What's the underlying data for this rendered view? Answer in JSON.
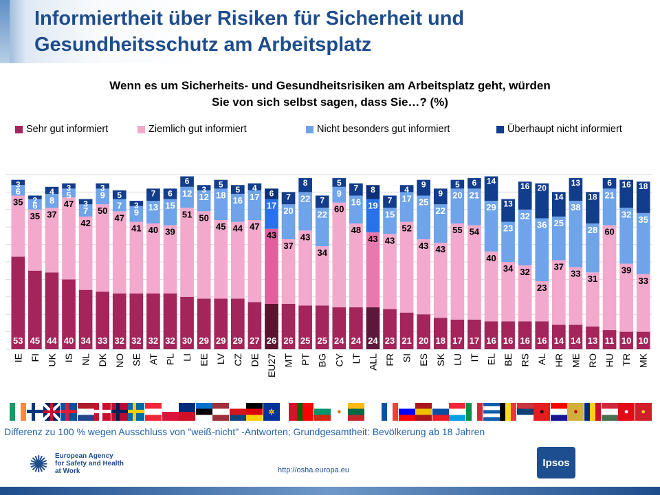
{
  "header": {
    "title_line1": "Informiertheit über Risiken für Sicherheit und",
    "title_line2": "Gesundheitsschutz am Arbeitsplatz"
  },
  "question": {
    "line1": "Wenn es um Sicherheits- und Gesundheitsrisiken am Arbeitsplatz geht, würden",
    "line2": "Sie von sich selbst sagen, dass Sie…? (%)"
  },
  "legend": [
    {
      "label": "Sehr gut informiert",
      "color": "#a3255a"
    },
    {
      "label": "Ziemlich gut informiert",
      "color": "#f2a9cc"
    },
    {
      "label": "Nicht besonders gut informiert",
      "color": "#6fa3ea"
    },
    {
      "label": "Überhaupt nicht informiert",
      "color": "#123c8c"
    }
  ],
  "chart_data": {
    "type": "bar",
    "stacked": true,
    "unit": "%",
    "ylim": [
      0,
      100
    ],
    "categories": [
      "IE",
      "FI",
      "UK",
      "IS",
      "NL",
      "DK",
      "NO",
      "SE",
      "AT",
      "PL",
      "LI",
      "EE",
      "LV",
      "CZ",
      "DE",
      "EU27",
      "MT",
      "PT",
      "BG",
      "CY",
      "LT",
      "ALL",
      "FR",
      "SI",
      "ES",
      "SK",
      "LU",
      "IT",
      "EL",
      "BE",
      "RS",
      "AL",
      "HR",
      "ME",
      "RO",
      "HU",
      "TR",
      "MK"
    ],
    "highlight": {
      "EU27": "eu",
      "ALL": "all"
    },
    "series": [
      {
        "name": "Sehr gut informiert",
        "values": [
          53,
          45,
          44,
          40,
          34,
          33,
          32,
          32,
          32,
          32,
          30,
          29,
          29,
          29,
          27,
          26,
          26,
          25,
          25,
          24,
          24,
          24,
          23,
          21,
          20,
          18,
          17,
          17,
          16,
          16,
          16,
          16,
          14,
          14,
          13,
          11,
          10,
          10
        ]
      },
      {
        "name": "Ziemlich gut informiert",
        "values": [
          35,
          35,
          37,
          47,
          42,
          50,
          47,
          41,
          40,
          39,
          51,
          50,
          45,
          44,
          47,
          43,
          37,
          43,
          34,
          60,
          48,
          43,
          43,
          52,
          43,
          43,
          55,
          54,
          40,
          34,
          32,
          23,
          37,
          33,
          31,
          60,
          39,
          33
        ]
      },
      {
        "name": "Nicht besonders gut informiert",
        "values": [
          6,
          6,
          8,
          5,
          7,
          9,
          7,
          9,
          13,
          15,
          12,
          12,
          18,
          16,
          17,
          17,
          20,
          22,
          22,
          9,
          16,
          19,
          15,
          17,
          25,
          22,
          20,
          21,
          29,
          23,
          32,
          36,
          25,
          38,
          28,
          21,
          32,
          35
        ]
      },
      {
        "name": "Überhaupt nicht informiert",
        "values": [
          3,
          2,
          4,
          3,
          3,
          3,
          5,
          3,
          7,
          6,
          6,
          3,
          5,
          5,
          4,
          6,
          7,
          8,
          7,
          5,
          7,
          8,
          7,
          4,
          9,
          9,
          5,
          6,
          14,
          13,
          16,
          20,
          14,
          13,
          18,
          6,
          16,
          18
        ]
      }
    ]
  },
  "flags": [
    {
      "code": "IE",
      "colors": [
        "#169b62",
        "#ffffff",
        "#ff883e"
      ],
      "dir": "v"
    },
    {
      "code": "FI",
      "colors": [
        "#ffffff",
        "#003580"
      ],
      "cross": true
    },
    {
      "code": "UK",
      "colors": [
        "#012169",
        "#c8102e",
        "#ffffff"
      ],
      "union": true
    },
    {
      "code": "IS",
      "colors": [
        "#02529c",
        "#dc1e35"
      ],
      "cross": true
    },
    {
      "code": "NL",
      "colors": [
        "#ae1c28",
        "#ffffff",
        "#21468b"
      ],
      "dir": "h"
    },
    {
      "code": "DK",
      "colors": [
        "#c8102e",
        "#ffffff"
      ],
      "cross": true
    },
    {
      "code": "NO",
      "colors": [
        "#ba0c2f",
        "#00205b"
      ],
      "cross": true
    },
    {
      "code": "SE",
      "colors": [
        "#006aa7",
        "#fecc00"
      ],
      "cross": true
    },
    {
      "code": "AT",
      "colors": [
        "#ed2939",
        "#ffffff",
        "#ed2939"
      ],
      "dir": "h"
    },
    {
      "code": "PL",
      "colors": [
        "#ffffff",
        "#dc143c"
      ],
      "dir": "h"
    },
    {
      "code": "LI",
      "colors": [
        "#002b7f",
        "#ce1126"
      ],
      "dir": "h"
    },
    {
      "code": "EE",
      "colors": [
        "#0072ce",
        "#000000",
        "#ffffff"
      ],
      "dir": "h"
    },
    {
      "code": "LV",
      "colors": [
        "#9e3039",
        "#ffffff",
        "#9e3039"
      ],
      "dir": "h"
    },
    {
      "code": "CZ",
      "colors": [
        "#ffffff",
        "#d7141a",
        "#11457e"
      ],
      "dir": "h"
    },
    {
      "code": "DE",
      "colors": [
        "#000000",
        "#dd0000",
        "#ffce00"
      ],
      "dir": "h"
    },
    {
      "code": "EU27",
      "colors": [
        "#003399",
        "#ffcc00"
      ],
      "eu": true
    },
    {
      "code": "MT",
      "colors": [
        "#ffffff",
        "#cf142b"
      ],
      "dir": "v"
    },
    {
      "code": "PT",
      "colors": [
        "#006600",
        "#ff0000",
        "#ff0000"
      ],
      "dir": "v"
    },
    {
      "code": "BG",
      "colors": [
        "#ffffff",
        "#00966e",
        "#d62612"
      ],
      "dir": "h"
    },
    {
      "code": "CY",
      "colors": [
        "#ffffff",
        "#d57800"
      ],
      "dot": true
    },
    {
      "code": "LT",
      "colors": [
        "#fdb913",
        "#006a44",
        "#c1272d"
      ],
      "dir": "h"
    },
    {
      "code": "ALL",
      "colors": [
        "#ffffff"
      ],
      "blank": true
    },
    {
      "code": "FR",
      "colors": [
        "#0055a4",
        "#ffffff",
        "#ef4135"
      ],
      "dir": "v"
    },
    {
      "code": "SI",
      "colors": [
        "#ffffff",
        "#0000ff",
        "#ff0000"
      ],
      "dir": "h"
    },
    {
      "code": "ES",
      "colors": [
        "#aa151b",
        "#f1bf00",
        "#aa151b"
      ],
      "dir": "h"
    },
    {
      "code": "SK",
      "colors": [
        "#ffffff",
        "#0b4ea2",
        "#ee1c25"
      ],
      "dir": "h"
    },
    {
      "code": "LU",
      "colors": [
        "#ed2939",
        "#ffffff",
        "#00a1de"
      ],
      "dir": "h"
    },
    {
      "code": "IT",
      "colors": [
        "#009246",
        "#ffffff",
        "#ce2b37"
      ],
      "dir": "v"
    },
    {
      "code": "EL",
      "colors": [
        "#0d5eaf",
        "#ffffff",
        "#0d5eaf",
        "#ffffff",
        "#0d5eaf"
      ],
      "dir": "h"
    },
    {
      "code": "BE",
      "colors": [
        "#000000",
        "#fdda24",
        "#ef3340"
      ],
      "dir": "v"
    },
    {
      "code": "RS",
      "colors": [
        "#c6363c",
        "#0c4076",
        "#ffffff"
      ],
      "dir": "h"
    },
    {
      "code": "AL",
      "colors": [
        "#e41e20",
        "#000000"
      ],
      "dot": true
    },
    {
      "code": "HR",
      "colors": [
        "#ff0000",
        "#ffffff",
        "#171796"
      ],
      "dir": "h"
    },
    {
      "code": "ME",
      "colors": [
        "#d3ae3b",
        "#c40308"
      ],
      "dot": true
    },
    {
      "code": "RO",
      "colors": [
        "#002b7f",
        "#fcd116",
        "#ce1126"
      ],
      "dir": "v"
    },
    {
      "code": "HU",
      "colors": [
        "#ce2939",
        "#ffffff",
        "#477050"
      ],
      "dir": "h"
    },
    {
      "code": "TR",
      "colors": [
        "#e30a17",
        "#ffffff"
      ],
      "dot": true
    },
    {
      "code": "MK",
      "colors": [
        "#ce2028",
        "#f9d616"
      ],
      "dot": true
    }
  ],
  "footnote": "Differenz zu 100 % wegen Ausschluss von \"weiß-nicht\" -Antworten; Grundgesamtheit: Bevölkerung ab 18 Jahren",
  "footer": {
    "agency_line1": "European Agency",
    "agency_line2": "for Safety and Health",
    "agency_line3": "at Work",
    "url": "http://osha.europa.eu",
    "ipsos": "Ipsos"
  }
}
